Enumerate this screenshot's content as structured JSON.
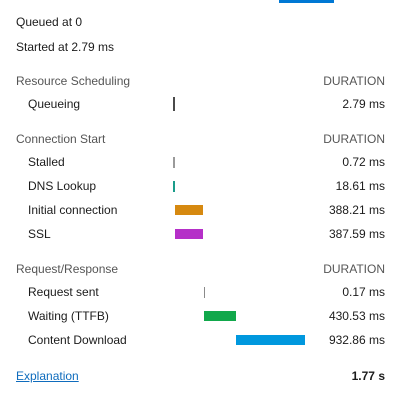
{
  "header": {
    "queued_at": "Queued at 0",
    "started_at": "Started at 2.79 ms"
  },
  "sections": [
    {
      "title": "Resource Scheduling",
      "duration_label": "DURATION",
      "rows": [
        {
          "label": "Queueing",
          "value": "2.79 ms",
          "start_ms": 0,
          "dur_ms": 2.79,
          "color": "#4a4a4a",
          "kind": "tick"
        }
      ]
    },
    {
      "title": "Connection Start",
      "duration_label": "DURATION",
      "rows": [
        {
          "label": "Stalled",
          "value": "0.72 ms",
          "start_ms": 2.79,
          "dur_ms": 0.72,
          "color": "#9a9a9a",
          "kind": "tick"
        },
        {
          "label": "DNS Lookup",
          "value": "18.61 ms",
          "start_ms": 3.51,
          "dur_ms": 18.61,
          "color": "#1a9c8a",
          "kind": "tick"
        },
        {
          "label": "Initial connection",
          "value": "388.21 ms",
          "start_ms": 22.12,
          "dur_ms": 388.21,
          "color": "#d68910",
          "kind": "bar"
        },
        {
          "label": "SSL",
          "value": "387.59 ms",
          "start_ms": 22.12,
          "dur_ms": 387.59,
          "color": "#b52fc8",
          "kind": "bar"
        }
      ]
    },
    {
      "title": "Request/Response",
      "duration_label": "DURATION",
      "rows": [
        {
          "label": "Request sent",
          "value": "0.17 ms",
          "start_ms": 410.33,
          "dur_ms": 0.17,
          "color": "#8a8a8a",
          "kind": "tick"
        },
        {
          "label": "Waiting (TTFB)",
          "value": "430.53 ms",
          "start_ms": 410.5,
          "dur_ms": 430.53,
          "color": "#11a84b",
          "kind": "bar"
        },
        {
          "label": "Content Download",
          "value": "932.86 ms",
          "start_ms": 841.03,
          "dur_ms": 932.86,
          "color": "#0098de",
          "kind": "bar"
        }
      ]
    }
  ],
  "footer": {
    "explanation_link": "Explanation",
    "total": "1.77 s"
  },
  "timeline": {
    "total_ms": 1773.89
  },
  "colors": {
    "accent": "#0078d4",
    "link": "#0f6cbd"
  }
}
